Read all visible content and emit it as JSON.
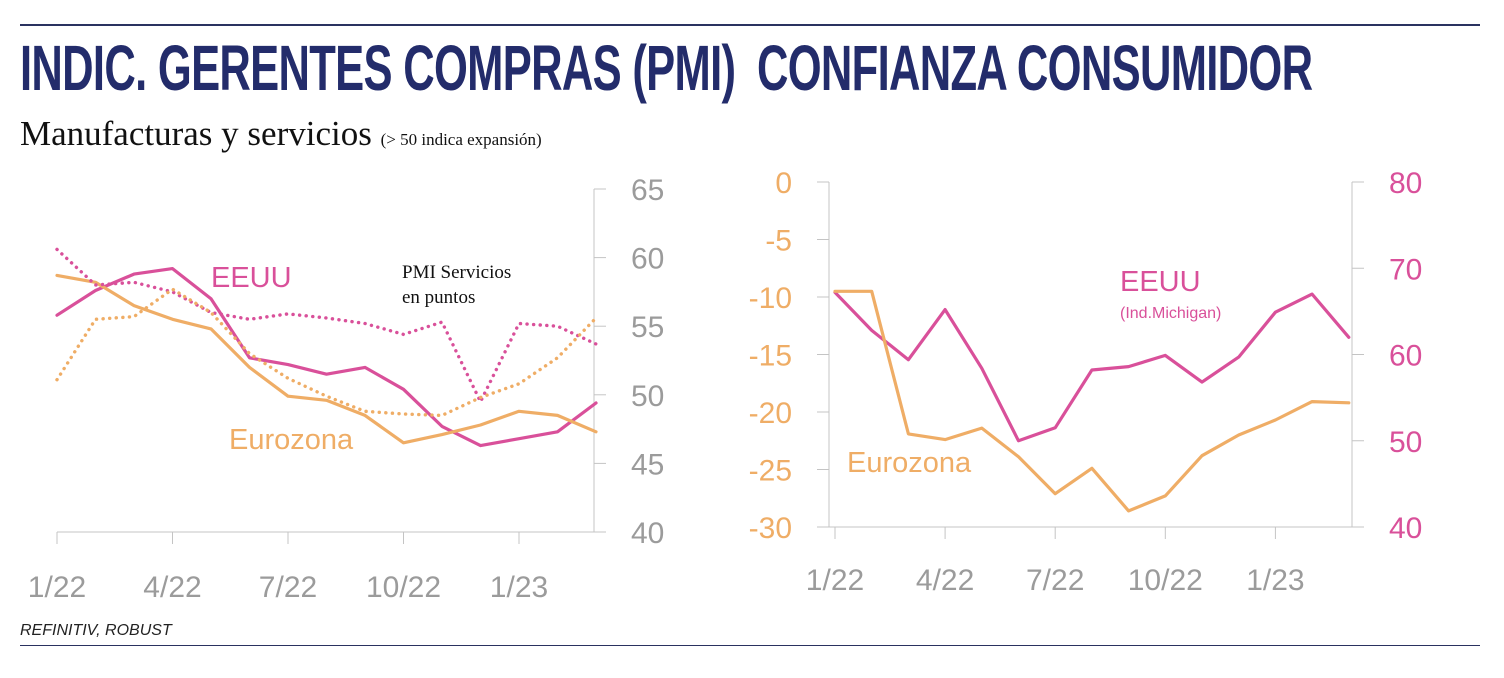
{
  "pmi_panel": {
    "title": "INDIC. GERENTES COMPRAS (PMI)",
    "subtitle": "Manufacturas y servicios",
    "subtitle_note": "(> 50 indica expansión)"
  },
  "confidence_panel": {
    "title": "CONFIANZA CONSUMIDOR"
  },
  "source": "REFINITIV, ROBUST",
  "colors": {
    "us": "#d9509a",
    "eurozone": "#efad66",
    "navy": "#232c6b",
    "axis": "#c4c4c4",
    "tick_text": "#9b9b9b"
  },
  "chart_data": [
    {
      "type": "line",
      "x_tick_labels": [
        "1/22",
        "4/22",
        "7/22",
        "10/22",
        "1/23"
      ],
      "x": [
        "1/22",
        "2/22",
        "3/22",
        "4/22",
        "5/22",
        "6/22",
        "7/22",
        "8/22",
        "9/22",
        "10/22",
        "11/22",
        "12/22",
        "1/23",
        "2/23",
        "3/23"
      ],
      "ylim": [
        40,
        65
      ],
      "y_ticks": [
        40,
        45,
        50,
        55,
        60,
        65
      ],
      "y_axis_side": "right",
      "annotations": [
        "EEUU",
        "Eurozona",
        "PMI Servicios",
        "en puntos"
      ],
      "series": [
        {
          "name": "EEUU",
          "style": "solid",
          "values": [
            55.8,
            57.6,
            58.8,
            59.2,
            57.0,
            52.7,
            52.2,
            51.5,
            52.0,
            50.4,
            47.7,
            46.3,
            46.8,
            47.3,
            49.4
          ]
        },
        {
          "name": "Eurozona",
          "style": "solid",
          "values": [
            58.7,
            58.2,
            56.5,
            55.5,
            54.8,
            52.0,
            49.9,
            49.6,
            48.5,
            46.5,
            47.1,
            47.8,
            48.8,
            48.5,
            47.3
          ]
        },
        {
          "name": "EEUU",
          "style": "dotted",
          "values": [
            60.6,
            58.0,
            58.2,
            57.5,
            56.0,
            55.5,
            55.9,
            55.6,
            55.2,
            54.4,
            55.3,
            49.5,
            55.2,
            55.0,
            53.7
          ]
        },
        {
          "name": "Eurozona",
          "style": "dotted",
          "values": [
            51.1,
            55.5,
            55.7,
            57.7,
            56.0,
            53.0,
            51.2,
            49.9,
            48.8,
            48.6,
            48.5,
            49.8,
            50.8,
            52.7,
            55.6
          ]
        }
      ]
    },
    {
      "type": "line",
      "x_tick_labels": [
        "1/22",
        "4/22",
        "7/22",
        "10/22",
        "1/23"
      ],
      "x": [
        "1/22",
        "2/22",
        "3/22",
        "4/22",
        "5/22",
        "6/22",
        "7/22",
        "8/22",
        "9/22",
        "10/22",
        "11/22",
        "12/22",
        "1/23",
        "2/23",
        "3/23"
      ],
      "annotations": [
        "EEUU",
        "(Ind.Michigan)",
        "Eurozona"
      ],
      "series": [
        {
          "name": "EEUU",
          "axis": "right",
          "ylim": [
            40,
            80
          ],
          "y_ticks": [
            40,
            50,
            60,
            70,
            80
          ],
          "values": [
            67.2,
            62.8,
            59.4,
            65.2,
            58.4,
            50.0,
            51.5,
            58.2,
            58.6,
            59.9,
            56.8,
            59.7,
            64.9,
            67.0,
            62.0
          ]
        },
        {
          "name": "Eurozona",
          "axis": "left",
          "ylim": [
            -30,
            0
          ],
          "y_ticks": [
            0,
            -5,
            -10,
            -15,
            -20,
            -25,
            -30
          ],
          "values": [
            -9.5,
            -9.5,
            -21.9,
            -22.4,
            -21.4,
            -23.9,
            -27.1,
            -24.9,
            -28.6,
            -27.3,
            -23.8,
            -22.0,
            -20.7,
            -19.1,
            -19.2
          ]
        }
      ]
    }
  ]
}
